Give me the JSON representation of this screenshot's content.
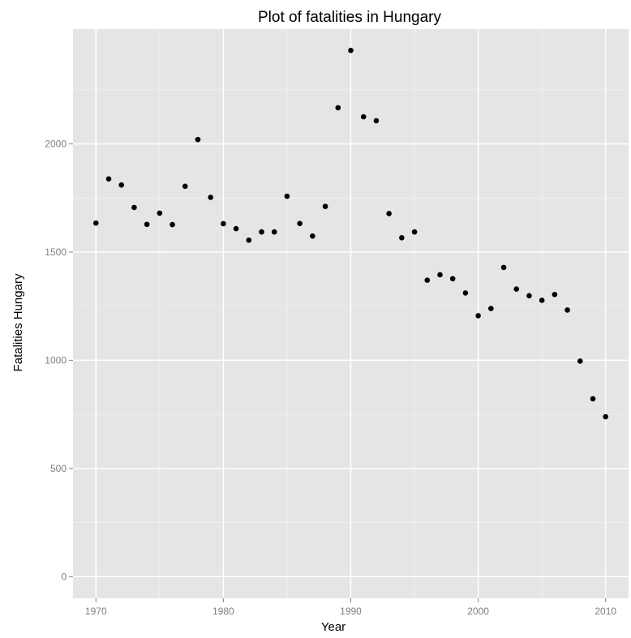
{
  "chart_data": {
    "type": "scatter",
    "title": "Plot of fatalities in Hungary",
    "xlabel": "Year",
    "ylabel": "Fatalities Hungary",
    "xlim": [
      1968.2,
      2011.8
    ],
    "ylim": [
      -100,
      2530
    ],
    "x_ticks": [
      1970,
      1980,
      1990,
      2000,
      2010
    ],
    "y_ticks": [
      0,
      500,
      1000,
      1500,
      2000
    ],
    "grid": true,
    "background": "#e5e5e5",
    "grid_major_color": "#ffffff",
    "grid_minor_color": "#f2f2f2",
    "point_color": "#000000",
    "series": [
      {
        "x": [
          1970,
          1971,
          1972,
          1973,
          1974,
          1975,
          1976,
          1977,
          1978,
          1979,
          1980,
          1981,
          1982,
          1983,
          1984,
          1985,
          1986,
          1987,
          1988,
          1989,
          1990,
          1991,
          1992,
          1993,
          1994,
          1995,
          1996,
          1997,
          1998,
          1999,
          2000,
          2001,
          2002,
          2003,
          2004,
          2005,
          2006,
          2007,
          2008,
          2009,
          2010
        ],
        "y": [
          1634,
          1838,
          1810,
          1706,
          1628,
          1680,
          1627,
          1804,
          2020,
          1753,
          1631,
          1608,
          1555,
          1593,
          1593,
          1758,
          1632,
          1574,
          1711,
          2167,
          2432,
          2125,
          2107,
          1678,
          1566,
          1593,
          1370,
          1395,
          1377,
          1311,
          1206,
          1239,
          1429,
          1329,
          1298,
          1277,
          1304,
          1232,
          996,
          822,
          739
        ]
      }
    ]
  }
}
